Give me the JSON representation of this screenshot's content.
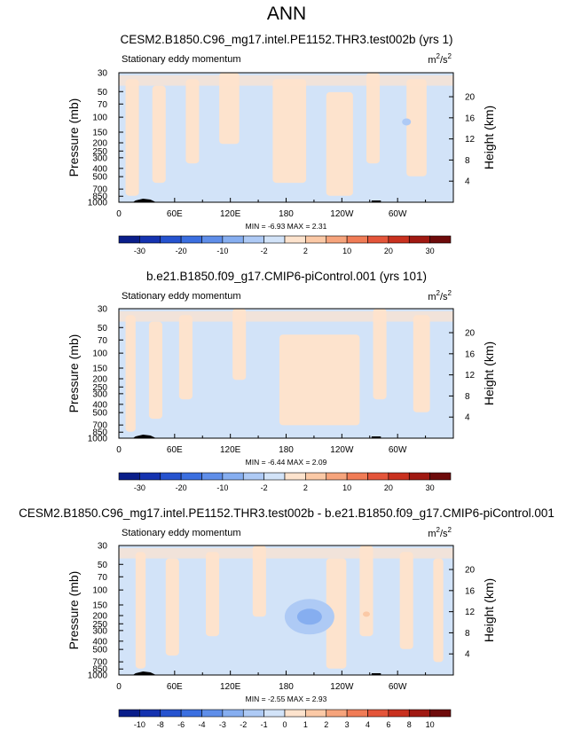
{
  "page_title": "ANN",
  "chart_data": [
    {
      "type": "heatmap",
      "title": "CESM2.B1850.C96_mg17.intel.PE1152.THR3.test002b (yrs 1)",
      "subtitle": "Stationary eddy momentum",
      "units_base": "m",
      "units_sup1": "2",
      "units_mid": "/s",
      "units_sup2": "2",
      "ylabel": "Pressure (mb)",
      "ylabel_right": "Height (km)",
      "x_ticks": [
        "0",
        "60E",
        "120E",
        "180",
        "120W",
        "60W"
      ],
      "y_ticks": [
        "30",
        "50",
        "70",
        "100",
        "150",
        "200",
        "250",
        "300",
        "400",
        "500",
        "700",
        "850",
        "1000"
      ],
      "y_right_ticks": [
        "20",
        "16",
        "12",
        "8",
        "4"
      ],
      "stats": "MIN =  -6.93  MAX =   2.31",
      "colorbar_labels": [
        "-30",
        "-20",
        "-10",
        "-2",
        "2",
        "10",
        "20",
        "30"
      ],
      "colorbar_colors": [
        "#0a1e8a",
        "#1533b0",
        "#2653cf",
        "#3b6fe0",
        "#5f8ee9",
        "#86aef0",
        "#aecaf5",
        "#d2e3f8",
        "#fde3cd",
        "#fbc9a6",
        "#f6a47c",
        "#f07c56",
        "#e4553a",
        "#c9311f",
        "#a01912",
        "#6e0b0b"
      ],
      "features": [
        "background-blue",
        "orange-bands",
        "faint-blue-spot"
      ]
    },
    {
      "type": "heatmap",
      "title": "b.e21.B1850.f09_g17.CMIP6-piControl.001 (yrs 101)",
      "subtitle": "Stationary eddy momentum",
      "units_base": "m",
      "units_sup1": "2",
      "units_mid": "/s",
      "units_sup2": "2",
      "ylabel": "Pressure (mb)",
      "ylabel_right": "Height (km)",
      "x_ticks": [
        "0",
        "60E",
        "120E",
        "180",
        "120W",
        "60W"
      ],
      "y_ticks": [
        "30",
        "50",
        "70",
        "100",
        "150",
        "200",
        "250",
        "300",
        "400",
        "500",
        "700",
        "850",
        "1000"
      ],
      "y_right_ticks": [
        "20",
        "16",
        "12",
        "8",
        "4"
      ],
      "stats": "MIN =  -6.44  MAX =   2.09",
      "colorbar_labels": [
        "-30",
        "-20",
        "-10",
        "-2",
        "2",
        "10",
        "20",
        "30"
      ],
      "colorbar_colors": [
        "#0a1e8a",
        "#1533b0",
        "#2653cf",
        "#3b6fe0",
        "#5f8ee9",
        "#86aef0",
        "#aecaf5",
        "#d2e3f8",
        "#fde3cd",
        "#fbc9a6",
        "#f6a47c",
        "#f07c56",
        "#e4553a",
        "#c9311f",
        "#a01912",
        "#6e0b0b"
      ],
      "features": [
        "background-blue",
        "orange-bands",
        "orange-block"
      ]
    },
    {
      "type": "heatmap",
      "title": "CESM2.B1850.C96_mg17.intel.PE1152.THR3.test002b - b.e21.B1850.f09_g17.CMIP6-piControl.001",
      "subtitle": "Stationary eddy momentum",
      "units_base": "m",
      "units_sup1": "2",
      "units_mid": "/s",
      "units_sup2": "2",
      "ylabel": "Pressure (mb)",
      "ylabel_right": "Height (km)",
      "x_ticks": [
        "0",
        "60E",
        "120E",
        "180",
        "120W",
        "60W"
      ],
      "y_ticks": [
        "30",
        "50",
        "70",
        "100",
        "150",
        "200",
        "250",
        "300",
        "400",
        "500",
        "700",
        "850",
        "1000"
      ],
      "y_right_ticks": [
        "20",
        "16",
        "12",
        "8",
        "4"
      ],
      "stats": "MIN =  -2.55  MAX =   2.93",
      "colorbar_labels": [
        "-10",
        "-8",
        "-6",
        "-4",
        "-3",
        "-2",
        "-1",
        "0",
        "1",
        "2",
        "3",
        "4",
        "6",
        "8",
        "10"
      ],
      "colorbar_colors": [
        "#0a1e8a",
        "#1533b0",
        "#2653cf",
        "#3b6fe0",
        "#5f8ee9",
        "#86aef0",
        "#aecaf5",
        "#d2e3f8",
        "#fde3cd",
        "#fbc9a6",
        "#f6a47c",
        "#f07c56",
        "#e4553a",
        "#c9311f",
        "#a01912",
        "#6e0b0b"
      ],
      "features": [
        "background-blue",
        "orange-bands",
        "blue-blob"
      ]
    }
  ]
}
